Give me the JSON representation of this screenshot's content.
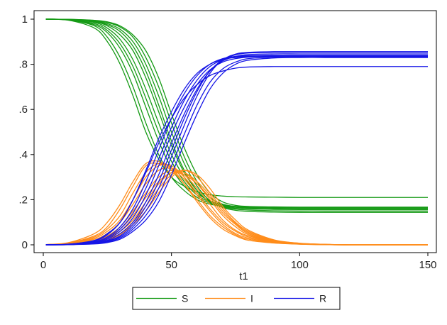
{
  "chart_data": {
    "type": "line",
    "title": "",
    "xlabel": "t1",
    "ylabel": "",
    "xlim": [
      0,
      150
    ],
    "ylim": [
      0,
      1
    ],
    "x_ticks": [
      0,
      50,
      100,
      150
    ],
    "x_tick_labels": [
      "0",
      "50",
      "100",
      "150"
    ],
    "y_ticks": [
      0,
      0.2,
      0.4,
      0.6,
      0.8,
      1
    ],
    "y_tick_labels": [
      "0",
      ".2",
      ".4",
      ".6",
      ".8",
      "1"
    ],
    "grid": false,
    "legend_position": "bottom",
    "legend": [
      {
        "name": "S",
        "color": "#159a15"
      },
      {
        "name": "I",
        "color": "#ff8c1a"
      },
      {
        "name": "R",
        "color": "#1515e6"
      }
    ],
    "x": [
      1,
      10,
      20,
      25,
      30,
      35,
      40,
      45,
      50,
      55,
      60,
      65,
      70,
      75,
      80,
      90,
      100,
      110,
      120,
      150
    ],
    "series": [
      {
        "group": "S",
        "color": "#159a15",
        "values": [
          1.0,
          0.995,
          0.96,
          0.9,
          0.8,
          0.66,
          0.5,
          0.38,
          0.3,
          0.26,
          0.235,
          0.222,
          0.216,
          0.213,
          0.212,
          0.211,
          0.21,
          0.21,
          0.21,
          0.21
        ]
      },
      {
        "group": "S",
        "color": "#159a15",
        "values": [
          1.0,
          0.996,
          0.97,
          0.92,
          0.83,
          0.7,
          0.54,
          0.4,
          0.3,
          0.24,
          0.2,
          0.18,
          0.172,
          0.168,
          0.166,
          0.165,
          0.165,
          0.165,
          0.165,
          0.165
        ]
      },
      {
        "group": "S",
        "color": "#159a15",
        "values": [
          1.0,
          0.997,
          0.975,
          0.94,
          0.87,
          0.76,
          0.61,
          0.46,
          0.34,
          0.26,
          0.21,
          0.185,
          0.172,
          0.166,
          0.163,
          0.161,
          0.16,
          0.16,
          0.16,
          0.16
        ]
      },
      {
        "group": "S",
        "color": "#159a15",
        "values": [
          1.0,
          0.997,
          0.98,
          0.95,
          0.89,
          0.79,
          0.65,
          0.5,
          0.37,
          0.28,
          0.22,
          0.19,
          0.175,
          0.168,
          0.165,
          0.163,
          0.162,
          0.162,
          0.162,
          0.162
        ]
      },
      {
        "group": "S",
        "color": "#159a15",
        "values": [
          1.0,
          0.998,
          0.985,
          0.96,
          0.91,
          0.82,
          0.69,
          0.54,
          0.4,
          0.3,
          0.23,
          0.195,
          0.178,
          0.17,
          0.167,
          0.165,
          0.164,
          0.164,
          0.164,
          0.164
        ]
      },
      {
        "group": "S",
        "color": "#159a15",
        "values": [
          1.0,
          0.998,
          0.988,
          0.97,
          0.93,
          0.86,
          0.74,
          0.59,
          0.44,
          0.32,
          0.24,
          0.19,
          0.17,
          0.162,
          0.159,
          0.157,
          0.156,
          0.156,
          0.156,
          0.156
        ]
      },
      {
        "group": "S",
        "color": "#159a15",
        "values": [
          1.0,
          0.998,
          0.99,
          0.975,
          0.945,
          0.88,
          0.77,
          0.62,
          0.46,
          0.33,
          0.24,
          0.19,
          0.168,
          0.158,
          0.154,
          0.151,
          0.15,
          0.15,
          0.15,
          0.15
        ]
      },
      {
        "group": "S",
        "color": "#159a15",
        "values": [
          1.0,
          0.999,
          0.992,
          0.98,
          0.955,
          0.9,
          0.8,
          0.66,
          0.5,
          0.36,
          0.26,
          0.195,
          0.165,
          0.153,
          0.148,
          0.145,
          0.144,
          0.144,
          0.144,
          0.144
        ]
      },
      {
        "group": "S",
        "color": "#159a15",
        "values": [
          1.0,
          0.999,
          0.994,
          0.985,
          0.965,
          0.92,
          0.83,
          0.7,
          0.54,
          0.39,
          0.28,
          0.21,
          0.18,
          0.17,
          0.166,
          0.164,
          0.163,
          0.163,
          0.163,
          0.163
        ]
      },
      {
        "group": "S",
        "color": "#159a15",
        "values": [
          1.0,
          0.999,
          0.995,
          0.988,
          0.97,
          0.93,
          0.86,
          0.74,
          0.58,
          0.43,
          0.31,
          0.23,
          0.19,
          0.175,
          0.17,
          0.168,
          0.167,
          0.167,
          0.167,
          0.167
        ]
      },
      {
        "group": "I",
        "color": "#ff8c1a",
        "values": [
          0.001,
          0.01,
          0.05,
          0.1,
          0.18,
          0.28,
          0.36,
          0.37,
          0.34,
          0.27,
          0.19,
          0.12,
          0.07,
          0.04,
          0.02,
          0.008,
          0.003,
          0.001,
          0.0,
          0.0
        ]
      },
      {
        "group": "I",
        "color": "#ff8c1a",
        "values": [
          0.001,
          0.008,
          0.04,
          0.08,
          0.16,
          0.26,
          0.35,
          0.36,
          0.33,
          0.27,
          0.2,
          0.13,
          0.08,
          0.045,
          0.025,
          0.009,
          0.003,
          0.001,
          0.0,
          0.0
        ]
      },
      {
        "group": "I",
        "color": "#ff8c1a",
        "values": [
          0.001,
          0.007,
          0.035,
          0.07,
          0.13,
          0.23,
          0.32,
          0.36,
          0.34,
          0.29,
          0.22,
          0.15,
          0.09,
          0.05,
          0.03,
          0.01,
          0.004,
          0.001,
          0.0,
          0.0
        ]
      },
      {
        "group": "I",
        "color": "#ff8c1a",
        "values": [
          0.001,
          0.006,
          0.03,
          0.06,
          0.11,
          0.2,
          0.3,
          0.35,
          0.35,
          0.3,
          0.23,
          0.16,
          0.1,
          0.06,
          0.035,
          0.012,
          0.004,
          0.001,
          0.0,
          0.0
        ]
      },
      {
        "group": "I",
        "color": "#ff8c1a",
        "values": [
          0.001,
          0.005,
          0.025,
          0.05,
          0.1,
          0.18,
          0.27,
          0.33,
          0.34,
          0.31,
          0.25,
          0.18,
          0.11,
          0.065,
          0.04,
          0.013,
          0.004,
          0.001,
          0.0,
          0.0
        ]
      },
      {
        "group": "I",
        "color": "#ff8c1a",
        "values": [
          0.001,
          0.004,
          0.02,
          0.04,
          0.08,
          0.15,
          0.23,
          0.3,
          0.33,
          0.32,
          0.27,
          0.2,
          0.13,
          0.08,
          0.045,
          0.015,
          0.005,
          0.002,
          0.0,
          0.0
        ]
      },
      {
        "group": "I",
        "color": "#ff8c1a",
        "values": [
          0.001,
          0.004,
          0.018,
          0.035,
          0.07,
          0.13,
          0.21,
          0.28,
          0.32,
          0.31,
          0.27,
          0.21,
          0.14,
          0.09,
          0.05,
          0.017,
          0.006,
          0.002,
          0.0,
          0.0
        ]
      },
      {
        "group": "I",
        "color": "#ff8c1a",
        "values": [
          0.001,
          0.003,
          0.015,
          0.03,
          0.06,
          0.11,
          0.19,
          0.27,
          0.32,
          0.32,
          0.28,
          0.22,
          0.15,
          0.095,
          0.055,
          0.018,
          0.006,
          0.002,
          0.0,
          0.0
        ]
      },
      {
        "group": "I",
        "color": "#ff8c1a",
        "values": [
          0.001,
          0.003,
          0.013,
          0.025,
          0.05,
          0.1,
          0.17,
          0.25,
          0.31,
          0.33,
          0.3,
          0.23,
          0.16,
          0.1,
          0.06,
          0.02,
          0.007,
          0.002,
          0.0,
          0.0
        ]
      },
      {
        "group": "I",
        "color": "#ff8c1a",
        "values": [
          0.001,
          0.002,
          0.011,
          0.02,
          0.045,
          0.09,
          0.15,
          0.23,
          0.3,
          0.33,
          0.31,
          0.25,
          0.17,
          0.11,
          0.065,
          0.022,
          0.007,
          0.002,
          0.0,
          0.0
        ]
      },
      {
        "group": "R",
        "color": "#1515e6",
        "values": [
          0.0,
          0.003,
          0.02,
          0.05,
          0.1,
          0.2,
          0.32,
          0.45,
          0.56,
          0.65,
          0.71,
          0.75,
          0.77,
          0.783,
          0.788,
          0.79,
          0.79,
          0.79,
          0.79,
          0.79
        ]
      },
      {
        "group": "R",
        "color": "#1515e6",
        "values": [
          0.0,
          0.003,
          0.018,
          0.045,
          0.1,
          0.2,
          0.33,
          0.47,
          0.59,
          0.69,
          0.76,
          0.8,
          0.822,
          0.83,
          0.833,
          0.835,
          0.835,
          0.835,
          0.835,
          0.835
        ]
      },
      {
        "group": "R",
        "color": "#1515e6",
        "values": [
          0.0,
          0.002,
          0.015,
          0.035,
          0.08,
          0.16,
          0.28,
          0.42,
          0.56,
          0.67,
          0.75,
          0.8,
          0.825,
          0.835,
          0.838,
          0.84,
          0.84,
          0.84,
          0.84,
          0.84
        ]
      },
      {
        "group": "R",
        "color": "#1515e6",
        "values": [
          0.0,
          0.002,
          0.012,
          0.03,
          0.07,
          0.14,
          0.25,
          0.38,
          0.52,
          0.64,
          0.73,
          0.79,
          0.82,
          0.832,
          0.836,
          0.838,
          0.838,
          0.838,
          0.838,
          0.838
        ]
      },
      {
        "group": "R",
        "color": "#1515e6",
        "values": [
          0.0,
          0.002,
          0.01,
          0.025,
          0.06,
          0.12,
          0.22,
          0.35,
          0.49,
          0.61,
          0.71,
          0.775,
          0.81,
          0.825,
          0.832,
          0.835,
          0.836,
          0.836,
          0.836,
          0.836
        ]
      },
      {
        "group": "R",
        "color": "#1515e6",
        "values": [
          0.0,
          0.001,
          0.008,
          0.02,
          0.05,
          0.1,
          0.19,
          0.31,
          0.45,
          0.58,
          0.69,
          0.77,
          0.815,
          0.835,
          0.843,
          0.846,
          0.846,
          0.846,
          0.846,
          0.846
        ]
      },
      {
        "group": "R",
        "color": "#1515e6",
        "values": [
          0.0,
          0.001,
          0.007,
          0.017,
          0.04,
          0.09,
          0.17,
          0.28,
          0.42,
          0.56,
          0.68,
          0.77,
          0.82,
          0.842,
          0.85,
          0.853,
          0.853,
          0.853,
          0.853,
          0.853
        ]
      },
      {
        "group": "R",
        "color": "#1515e6",
        "values": [
          0.0,
          0.001,
          0.006,
          0.015,
          0.035,
          0.08,
          0.15,
          0.25,
          0.39,
          0.53,
          0.66,
          0.76,
          0.82,
          0.845,
          0.853,
          0.856,
          0.856,
          0.856,
          0.856,
          0.856
        ]
      },
      {
        "group": "R",
        "color": "#1515e6",
        "values": [
          0.0,
          0.001,
          0.005,
          0.012,
          0.03,
          0.07,
          0.13,
          0.22,
          0.35,
          0.49,
          0.62,
          0.72,
          0.78,
          0.81,
          0.825,
          0.832,
          0.834,
          0.834,
          0.834,
          0.834
        ]
      },
      {
        "group": "R",
        "color": "#1515e6",
        "values": [
          0.0,
          0.001,
          0.004,
          0.01,
          0.025,
          0.06,
          0.11,
          0.19,
          0.31,
          0.45,
          0.58,
          0.69,
          0.76,
          0.8,
          0.818,
          0.828,
          0.83,
          0.83,
          0.83,
          0.83
        ]
      }
    ]
  }
}
